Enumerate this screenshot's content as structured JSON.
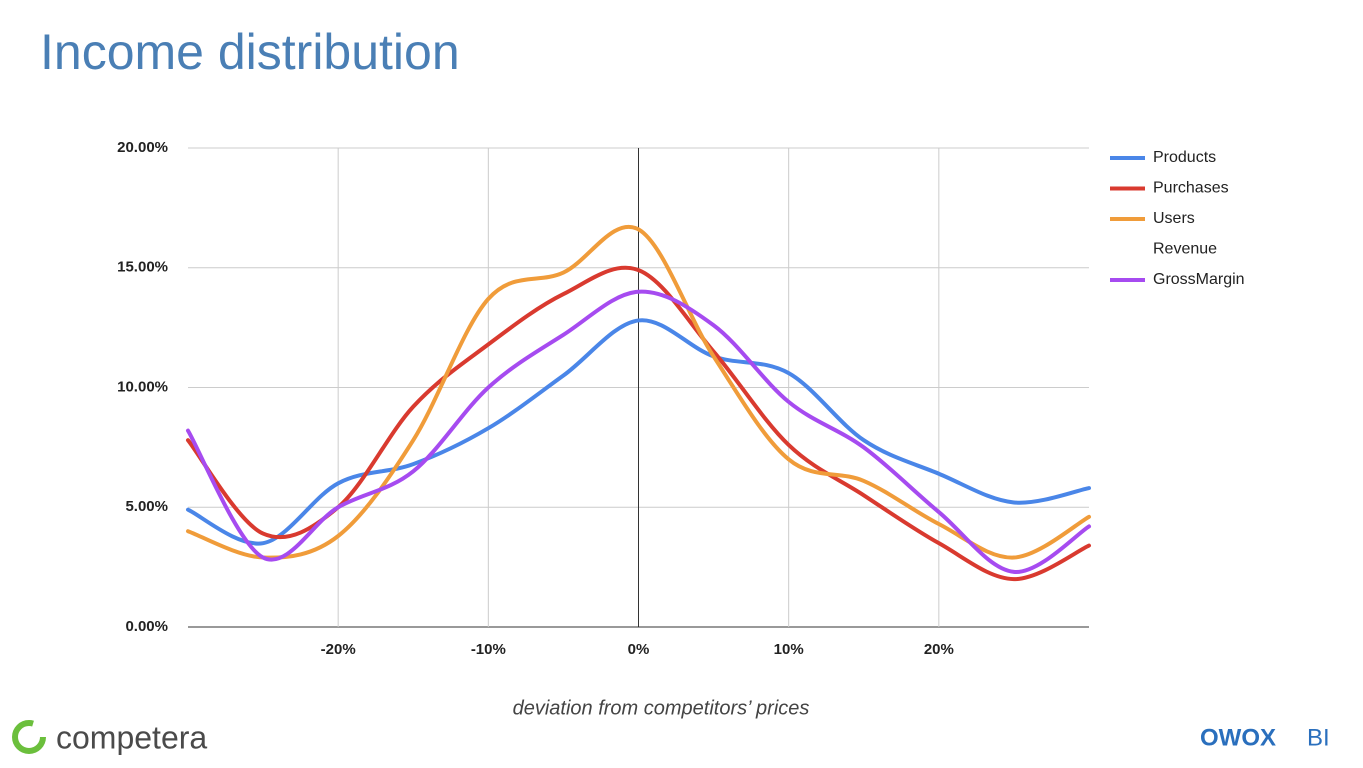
{
  "chart_data": {
    "type": "line",
    "title": "Income distribution",
    "x_label": "deviation from competitors’ prices",
    "x": [
      -30,
      -25,
      -20,
      -15,
      -10,
      -5,
      0,
      5,
      10,
      15,
      20,
      25,
      30
    ],
    "series": [
      {
        "name": "Products",
        "color": "#4a86e8",
        "values": [
          4.9,
          3.5,
          6.0,
          6.8,
          8.3,
          10.5,
          12.8,
          11.3,
          10.6,
          7.8,
          6.4,
          5.2,
          5.8
        ]
      },
      {
        "name": "Purchases",
        "color": "#d93a2f",
        "values": [
          7.8,
          3.9,
          5.0,
          9.2,
          11.8,
          13.9,
          14.9,
          11.5,
          7.6,
          5.5,
          3.5,
          2.0,
          3.4
        ]
      },
      {
        "name": "Users",
        "color": "#f09c3a",
        "values": [
          4.0,
          2.9,
          3.8,
          7.8,
          13.7,
          14.8,
          16.6,
          11.3,
          7.0,
          6.1,
          4.3,
          2.9,
          4.6
        ]
      },
      {
        "name": "Revenue",
        "color": "#ffffff",
        "values": [
          null,
          null,
          null,
          null,
          null,
          null,
          null,
          null,
          null,
          null,
          null,
          null,
          null
        ]
      },
      {
        "name": "GrossMargin",
        "color": "#a64bf0",
        "values": [
          8.2,
          2.9,
          5.0,
          6.5,
          10.0,
          12.2,
          14.0,
          12.6,
          9.4,
          7.5,
          4.8,
          2.3,
          4.2
        ]
      }
    ],
    "xlim": [
      -30,
      30
    ],
    "xticks": [
      {
        "value": -20,
        "label": "-20%"
      },
      {
        "value": -10,
        "label": "-10%"
      },
      {
        "value": 0,
        "label": "0%"
      },
      {
        "value": 10,
        "label": "10%"
      },
      {
        "value": 20,
        "label": "20%"
      }
    ],
    "ylim": [
      0,
      20
    ],
    "yticks": [
      {
        "value": 0,
        "label": "0.00%"
      },
      {
        "value": 5,
        "label": "5.00%"
      },
      {
        "value": 10,
        "label": "10.00%"
      },
      {
        "value": 15,
        "label": "15.00%"
      },
      {
        "value": 20,
        "label": "20.00%"
      }
    ],
    "grid": true,
    "legend": "right"
  },
  "logos": {
    "left": "competera",
    "right_main": "OWOX",
    "right_sub": "BI"
  }
}
